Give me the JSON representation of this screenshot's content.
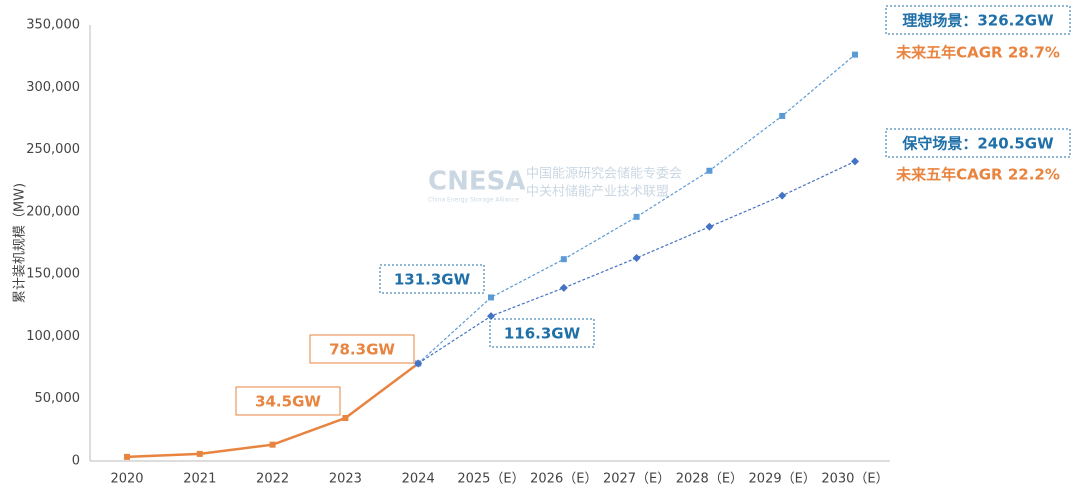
{
  "chart_data": {
    "type": "line",
    "y_label": "累计装机规模（MW)",
    "categories": [
      "2020",
      "2021",
      "2022",
      "2023",
      "2024",
      "2025（E）",
      "2026（E）",
      "2027（E）",
      "2028（E）",
      "2029（E）",
      "2030（E）"
    ],
    "series": [
      {
        "color": "#e8843f",
        "values": [
          3300,
          5700,
          13100,
          34500,
          78300,
          null,
          null,
          null,
          null,
          null,
          null
        ]
      },
      {
        "color": "#5b9bd5",
        "values": [
          null,
          null,
          null,
          null,
          78300,
          131300,
          162000,
          196000,
          233000,
          277000,
          326200
        ]
      },
      {
        "color": "#4472c4",
        "values": [
          null,
          null,
          null,
          null,
          78300,
          116300,
          139000,
          163000,
          188000,
          213000,
          240500
        ]
      }
    ],
    "ylim": [
      0,
      350000
    ],
    "yticks": [
      0,
      {
        "value": 50000,
        "label": "50,000"
      },
      {
        "value": 100000,
        "label": "100,000"
      },
      {
        "value": 150000,
        "label": "150,000"
      },
      {
        "value": 200000,
        "label": "200,000"
      },
      {
        "value": 250000,
        "label": "250,000"
      },
      {
        "value": 300000,
        "label": "300,000"
      },
      {
        "value": 350000,
        "label": "350,000"
      }
    ],
    "annotations": [
      "34.5GW",
      "78.3GW",
      "131.3GW",
      "116.3GW",
      "理想场景：326.2GW",
      "未来五年CAGR 28.7%",
      "保守场景：240.5GW",
      "未来五年CAGR 22.2%"
    ],
    "watermark": [
      "CNESA",
      "中国能源研究会储能专委会",
      "中关村储能产业技术联盟",
      "China Energy Storage Alliance"
    ]
  }
}
